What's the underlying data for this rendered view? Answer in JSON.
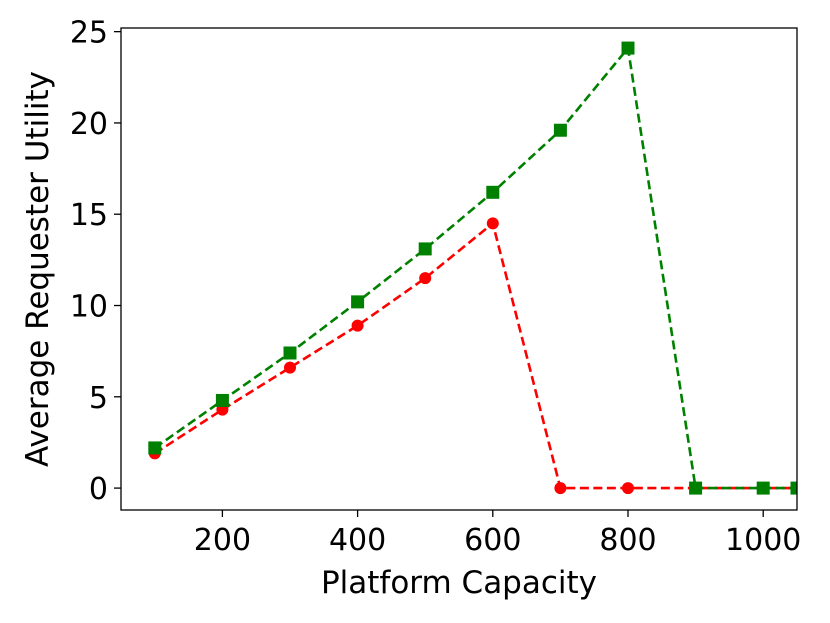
{
  "chart_data": {
    "type": "line",
    "xlabel": "Platform Capacity",
    "ylabel": "Average Requester Utility",
    "xlim": [
      50,
      1050
    ],
    "ylim": [
      -1.2,
      25.2
    ],
    "xticks": [
      200,
      400,
      600,
      800,
      1000
    ],
    "yticks": [
      0,
      5,
      10,
      15,
      20,
      25
    ],
    "grid": false,
    "series": [
      {
        "color": "#ff0000",
        "marker": "circle",
        "linestyle": "dashed",
        "x": [
          100,
          200,
          300,
          400,
          500,
          600,
          700,
          800,
          900,
          1000,
          1050
        ],
        "y": [
          1.9,
          4.3,
          6.6,
          8.9,
          11.5,
          14.5,
          0.0,
          0.0,
          0.0,
          0.0,
          0.0
        ]
      },
      {
        "color": "#008000",
        "marker": "square",
        "linestyle": "dashed",
        "x": [
          100,
          200,
          300,
          400,
          500,
          600,
          700,
          800,
          900,
          1000,
          1050
        ],
        "y": [
          2.2,
          4.8,
          7.4,
          10.2,
          13.1,
          16.2,
          19.6,
          24.1,
          0.0,
          0.0,
          0.0
        ]
      }
    ]
  }
}
